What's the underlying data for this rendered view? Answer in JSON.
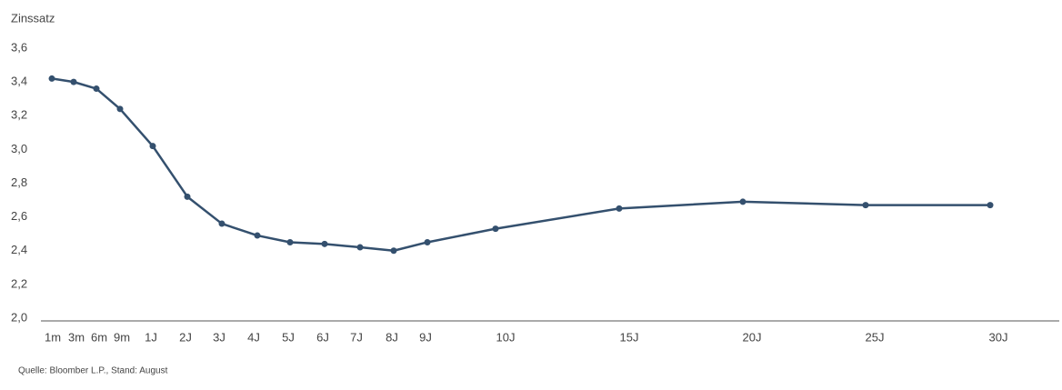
{
  "chart_data": {
    "type": "line",
    "y_label": "Zinssatz",
    "source": "Quelle: Bloomber L.P., Stand: August",
    "categories": [
      "1m",
      "3m",
      "6m",
      "9m",
      "1J",
      "2J",
      "3J",
      "4J",
      "5J",
      "6J",
      "7J",
      "8J",
      "9J",
      "10J",
      "15J",
      "20J",
      "25J",
      "30J"
    ],
    "series": [
      {
        "color": "#34506e",
        "values": [
          3.42,
          3.4,
          3.36,
          3.24,
          3.02,
          2.72,
          2.56,
          2.49,
          2.45,
          2.44,
          2.42,
          2.4,
          2.45,
          2.53,
          2.65,
          2.69,
          2.67,
          2.67
        ]
      }
    ],
    "ylim": [
      2.0,
      3.6
    ],
    "yticks": [
      {
        "value": 2.0,
        "label": "2,0"
      },
      {
        "value": 2.2,
        "label": "2,2"
      },
      {
        "value": 2.4,
        "label": "2,4"
      },
      {
        "value": 2.6,
        "label": "2,6"
      },
      {
        "value": 2.8,
        "label": "2,8"
      },
      {
        "value": 3.0,
        "label": "3,0"
      },
      {
        "value": 3.2,
        "label": "3,2"
      },
      {
        "value": 3.4,
        "label": "3,4"
      },
      {
        "value": 3.6,
        "label": "3,6"
      }
    ],
    "grid": false
  }
}
